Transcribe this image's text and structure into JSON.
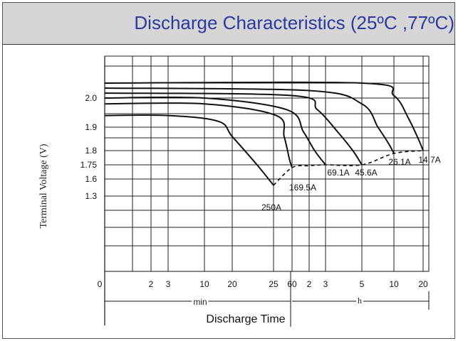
{
  "chart_data": {
    "type": "line",
    "title": "Discharge Characteristics (25ºC ,77ºC)",
    "xlabel": "Discharge Time",
    "ylabel": "Terminal Voltage (V)",
    "x_unit_min": "min",
    "x_unit_h": "h",
    "x_ticks": [
      {
        "label": "0",
        "minutes": 0
      },
      {
        "label": "2",
        "minutes": 2
      },
      {
        "label": "3",
        "minutes": 3
      },
      {
        "label": "10",
        "minutes": 10
      },
      {
        "label": "20",
        "minutes": 20
      },
      {
        "label": "25",
        "minutes": 25
      },
      {
        "label": "60",
        "minutes": 60
      },
      {
        "label": "2",
        "minutes": 120
      },
      {
        "label": "3",
        "minutes": 180
      },
      {
        "label": "5",
        "minutes": 300
      },
      {
        "label": "10",
        "minutes": 600
      },
      {
        "label": "20",
        "minutes": 1200
      }
    ],
    "y_ticks": [
      "2.0",
      "1.9",
      "1.8",
      "1.75",
      "1.6",
      "1.3"
    ],
    "grid": true,
    "series": [
      {
        "name": "250A",
        "points": [
          [
            0,
            1.94
          ],
          [
            3,
            1.94
          ],
          [
            15,
            1.92
          ],
          [
            20,
            1.86
          ],
          [
            23,
            1.75
          ],
          [
            25,
            1.49
          ]
        ]
      },
      {
        "name": "169.5A",
        "points": [
          [
            0,
            1.98
          ],
          [
            10,
            1.98
          ],
          [
            30,
            1.94
          ],
          [
            45,
            1.86
          ],
          [
            55,
            1.77
          ],
          [
            60,
            1.72
          ]
        ]
      },
      {
        "name": "69.1A",
        "points": [
          [
            0,
            2.0
          ],
          [
            10,
            2.0
          ],
          [
            50,
            1.96
          ],
          [
            100,
            1.88
          ],
          [
            140,
            1.8
          ],
          [
            180,
            1.75
          ]
        ]
      },
      {
        "name": "45.6A",
        "points": [
          [
            0,
            2.02
          ],
          [
            60,
            2.01
          ],
          [
            150,
            1.96
          ],
          [
            220,
            1.88
          ],
          [
            270,
            1.8
          ],
          [
            300,
            1.75
          ]
        ]
      },
      {
        "name": "26.1A",
        "points": [
          [
            0,
            2.04
          ],
          [
            120,
            2.03
          ],
          [
            300,
            1.98
          ],
          [
            450,
            1.9
          ],
          [
            550,
            1.83
          ],
          [
            600,
            1.79
          ]
        ]
      },
      {
        "name": "14.7A",
        "points": [
          [
            0,
            2.06
          ],
          [
            300,
            2.06
          ],
          [
            600,
            2.01
          ],
          [
            900,
            1.93
          ],
          [
            1100,
            1.85
          ],
          [
            1200,
            1.8
          ]
        ]
      }
    ],
    "end_voltage_curve": [
      [
        25,
        1.49
      ],
      [
        60,
        1.72
      ],
      [
        120,
        1.74
      ],
      [
        180,
        1.75
      ],
      [
        300,
        1.75
      ],
      [
        600,
        1.79
      ],
      [
        1200,
        1.8
      ]
    ]
  }
}
